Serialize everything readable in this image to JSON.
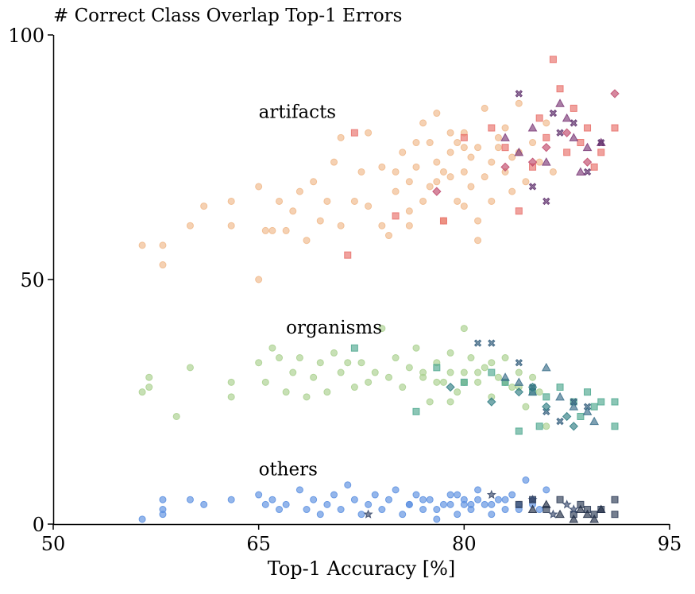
{
  "chart_data": {
    "type": "scatter",
    "title": "# Correct Class Overlap Top-1 Errors",
    "xlabel": "Top-1 Accuracy [%]",
    "ylabel": "",
    "xlim": [
      50,
      95
    ],
    "ylim": [
      0,
      100
    ],
    "x_ticks": [
      "50",
      "65",
      "80",
      "95"
    ],
    "y_ticks": [
      "0",
      "50",
      "100"
    ],
    "grid": false,
    "annotations": [
      {
        "text": "artifacts",
        "x": 65,
        "y": 83
      },
      {
        "text": "organisms",
        "x": 67,
        "y": 39
      },
      {
        "text": "others",
        "x": 65,
        "y": 10
      }
    ],
    "series": [
      {
        "group": "artifacts",
        "color": "#f0b98a",
        "marker": "circle",
        "points": [
          [
            56.5,
            57
          ],
          [
            58,
            57
          ],
          [
            58,
            53
          ],
          [
            60,
            61
          ],
          [
            61,
            65
          ],
          [
            63,
            61
          ],
          [
            63,
            66
          ],
          [
            65,
            69
          ],
          [
            65.5,
            60
          ],
          [
            65,
            50
          ],
          [
            66,
            60
          ],
          [
            66.5,
            66
          ],
          [
            67,
            60
          ],
          [
            67.5,
            64
          ],
          [
            68,
            68
          ],
          [
            68.5,
            58
          ],
          [
            69,
            70
          ],
          [
            69.5,
            62
          ],
          [
            70,
            66
          ],
          [
            70.5,
            74
          ],
          [
            71,
            61
          ],
          [
            71,
            79
          ],
          [
            72,
            66
          ],
          [
            72.5,
            72
          ],
          [
            73,
            80
          ],
          [
            73,
            65
          ],
          [
            74,
            61
          ],
          [
            74,
            73
          ],
          [
            74.5,
            59
          ],
          [
            75,
            68
          ],
          [
            75.5,
            76
          ],
          [
            76,
            61
          ],
          [
            76,
            70
          ],
          [
            76.5,
            78
          ],
          [
            77,
            66
          ],
          [
            77,
            82
          ],
          [
            77.5,
            69
          ],
          [
            78,
            74
          ],
          [
            78,
            84
          ],
          [
            78.5,
            62
          ],
          [
            79,
            71
          ],
          [
            79,
            76
          ],
          [
            79.5,
            66
          ],
          [
            80,
            80
          ],
          [
            80,
            72
          ],
          [
            80.5,
            69
          ],
          [
            81,
            77
          ],
          [
            81,
            62
          ],
          [
            81.5,
            85
          ],
          [
            82,
            74
          ],
          [
            82,
            66
          ],
          [
            82.5,
            79
          ],
          [
            83,
            72
          ],
          [
            83,
            81
          ],
          [
            83.5,
            68
          ],
          [
            84,
            76
          ],
          [
            84,
            86
          ],
          [
            84.5,
            70
          ],
          [
            85,
            78
          ],
          [
            85.5,
            74
          ],
          [
            86,
            82
          ],
          [
            86.5,
            72
          ],
          [
            76.5,
            73
          ],
          [
            77.5,
            78
          ],
          [
            78.5,
            72
          ],
          [
            79.5,
            78
          ],
          [
            80.5,
            75
          ],
          [
            81.5,
            71
          ],
          [
            82.5,
            77
          ],
          [
            83.5,
            75
          ],
          [
            80,
            77
          ],
          [
            79,
            80
          ],
          [
            78,
            70
          ],
          [
            81,
            58
          ],
          [
            76,
            64
          ],
          [
            75,
            72
          ],
          [
            80,
            65
          ]
        ]
      },
      {
        "group": "artifacts",
        "color": "#e8706a",
        "marker": "square",
        "points": [
          [
            72,
            80
          ],
          [
            71.5,
            55
          ],
          [
            75,
            63
          ],
          [
            78.5,
            62
          ],
          [
            80,
            79
          ],
          [
            82,
            81
          ],
          [
            83,
            77
          ],
          [
            84,
            64
          ],
          [
            85,
            73
          ],
          [
            85.5,
            83
          ],
          [
            86,
            79
          ],
          [
            87,
            89
          ],
          [
            87.5,
            76
          ],
          [
            88,
            85
          ],
          [
            88.5,
            78
          ],
          [
            89,
            81
          ],
          [
            89.5,
            73
          ],
          [
            90,
            76
          ],
          [
            91,
            81
          ],
          [
            86.5,
            95
          ]
        ]
      },
      {
        "group": "artifacts",
        "color": "#7c3a78",
        "marker": "triangle",
        "points": [
          [
            83,
            79
          ],
          [
            84,
            76
          ],
          [
            85,
            81
          ],
          [
            86,
            74
          ],
          [
            87,
            86
          ],
          [
            88,
            79
          ],
          [
            88.5,
            72
          ],
          [
            89,
            77
          ],
          [
            90,
            78
          ],
          [
            87.5,
            83
          ]
        ]
      },
      {
        "group": "artifacts",
        "color": "#5c2d6a",
        "marker": "cross",
        "points": [
          [
            84,
            88
          ],
          [
            85,
            69
          ],
          [
            86,
            66
          ],
          [
            87,
            80
          ],
          [
            88,
            82
          ],
          [
            89,
            72
          ],
          [
            90,
            78
          ],
          [
            86.5,
            84
          ]
        ]
      },
      {
        "group": "artifacts",
        "color": "#c0486a",
        "marker": "diamond",
        "points": [
          [
            78,
            68
          ],
          [
            83,
            73
          ],
          [
            85,
            74
          ],
          [
            86,
            77
          ],
          [
            87.5,
            80
          ],
          [
            89,
            74
          ],
          [
            91,
            88
          ]
        ]
      },
      {
        "group": "organisms",
        "color": "#a9d08e",
        "marker": "circle",
        "points": [
          [
            56.5,
            27
          ],
          [
            57,
            30
          ],
          [
            57,
            28
          ],
          [
            59,
            22
          ],
          [
            60,
            32
          ],
          [
            63,
            26
          ],
          [
            63,
            29
          ],
          [
            65,
            33
          ],
          [
            65.5,
            29
          ],
          [
            66,
            36
          ],
          [
            66.5,
            34
          ],
          [
            67,
            27
          ],
          [
            67.5,
            31
          ],
          [
            68,
            34
          ],
          [
            68.5,
            26
          ],
          [
            69,
            30
          ],
          [
            69.5,
            33
          ],
          [
            70,
            27
          ],
          [
            70.5,
            35
          ],
          [
            71,
            31
          ],
          [
            71.5,
            33
          ],
          [
            72,
            28
          ],
          [
            72.5,
            33
          ],
          [
            73,
            29
          ],
          [
            73.5,
            31
          ],
          [
            74,
            40
          ],
          [
            74.5,
            30
          ],
          [
            75,
            34
          ],
          [
            75.5,
            28
          ],
          [
            76,
            32
          ],
          [
            76.5,
            36
          ],
          [
            77,
            30
          ],
          [
            77.5,
            25
          ],
          [
            78,
            33
          ],
          [
            78.5,
            29
          ],
          [
            79,
            35
          ],
          [
            79.5,
            27
          ],
          [
            80,
            31
          ],
          [
            80,
            40
          ],
          [
            80.5,
            34
          ],
          [
            81,
            29
          ],
          [
            81.5,
            32
          ],
          [
            82,
            26
          ],
          [
            82.5,
            30
          ],
          [
            83,
            34
          ],
          [
            83.5,
            28
          ],
          [
            84,
            31
          ],
          [
            84.5,
            24
          ],
          [
            85,
            30
          ],
          [
            85.5,
            27
          ],
          [
            86,
            20
          ],
          [
            77,
            31
          ],
          [
            78,
            29
          ],
          [
            79,
            31
          ],
          [
            80,
            29
          ],
          [
            81,
            31
          ],
          [
            82,
            33
          ],
          [
            83,
            29
          ],
          [
            84,
            28
          ],
          [
            79,
            25
          ]
        ]
      },
      {
        "group": "organisms",
        "color": "#4fa88f",
        "marker": "square",
        "points": [
          [
            72,
            36
          ],
          [
            78,
            32
          ],
          [
            80,
            29
          ],
          [
            82,
            31
          ],
          [
            83,
            29
          ],
          [
            85,
            27
          ],
          [
            86,
            26
          ],
          [
            87,
            28
          ],
          [
            88,
            25
          ],
          [
            88.5,
            22
          ],
          [
            89,
            27
          ],
          [
            89.5,
            24
          ],
          [
            90,
            25
          ],
          [
            91,
            25
          ],
          [
            91,
            20
          ],
          [
            85.5,
            20
          ],
          [
            84,
            19
          ],
          [
            76.5,
            23
          ]
        ]
      },
      {
        "group": "organisms",
        "color": "#2f5a7a",
        "marker": "cross",
        "points": [
          [
            81,
            37
          ],
          [
            82,
            37
          ],
          [
            84,
            33
          ],
          [
            85,
            28
          ],
          [
            86,
            23
          ],
          [
            87,
            21
          ],
          [
            88,
            25
          ],
          [
            89,
            24
          ]
        ]
      },
      {
        "group": "organisms",
        "color": "#3a6f8a",
        "marker": "triangle",
        "points": [
          [
            83,
            30
          ],
          [
            84,
            29
          ],
          [
            85,
            27
          ],
          [
            86,
            32
          ],
          [
            87,
            26
          ],
          [
            88,
            24
          ],
          [
            89,
            23
          ],
          [
            89.5,
            21
          ]
        ]
      },
      {
        "group": "organisms",
        "color": "#2e7d83",
        "marker": "diamond",
        "points": [
          [
            79,
            28
          ],
          [
            82,
            25
          ],
          [
            84,
            27
          ],
          [
            85,
            28
          ],
          [
            86,
            24
          ],
          [
            87.5,
            22
          ],
          [
            88,
            20
          ]
        ]
      },
      {
        "group": "others",
        "color": "#5b8fe0",
        "marker": "circle",
        "points": [
          [
            56.5,
            1
          ],
          [
            58,
            5
          ],
          [
            58,
            3
          ],
          [
            58,
            2
          ],
          [
            60,
            5
          ],
          [
            61,
            4
          ],
          [
            63,
            5
          ],
          [
            65,
            6
          ],
          [
            65.5,
            4
          ],
          [
            66,
            5
          ],
          [
            66.5,
            3
          ],
          [
            67,
            4
          ],
          [
            68,
            7
          ],
          [
            68.5,
            3
          ],
          [
            69,
            5
          ],
          [
            69.5,
            2
          ],
          [
            70,
            4
          ],
          [
            70.5,
            6
          ],
          [
            71,
            3
          ],
          [
            71.5,
            8
          ],
          [
            72,
            5
          ],
          [
            72.5,
            2
          ],
          [
            73,
            4
          ],
          [
            73.5,
            6
          ],
          [
            74,
            3
          ],
          [
            74.5,
            5
          ],
          [
            75,
            7
          ],
          [
            75.5,
            2
          ],
          [
            76,
            4
          ],
          [
            76.5,
            6
          ],
          [
            77,
            3
          ],
          [
            77.5,
            5
          ],
          [
            78,
            1
          ],
          [
            78.5,
            4
          ],
          [
            79,
            6
          ],
          [
            79.5,
            2
          ],
          [
            80,
            5
          ],
          [
            80.5,
            3
          ],
          [
            81,
            7
          ],
          [
            81.5,
            4
          ],
          [
            82,
            2
          ],
          [
            82.5,
            5
          ],
          [
            83,
            3
          ],
          [
            83.5,
            6
          ],
          [
            84,
            4
          ],
          [
            84.5,
            9
          ],
          [
            85,
            5
          ],
          [
            85.5,
            3
          ],
          [
            86,
            7
          ],
          [
            76,
            4
          ],
          [
            77,
            5
          ],
          [
            78,
            3
          ],
          [
            79,
            4
          ],
          [
            80,
            4
          ],
          [
            81,
            5
          ],
          [
            82,
            4
          ],
          [
            83,
            5
          ],
          [
            84,
            3
          ],
          [
            85,
            4
          ],
          [
            79.5,
            6
          ],
          [
            80.5,
            4
          ]
        ]
      },
      {
        "group": "others",
        "color": "#2b3a55",
        "marker": "square",
        "points": [
          [
            84,
            4
          ],
          [
            85,
            5
          ],
          [
            86,
            3
          ],
          [
            87,
            5
          ],
          [
            88,
            2
          ],
          [
            88.5,
            4
          ],
          [
            89,
            3
          ],
          [
            89.5,
            2
          ],
          [
            90,
            3
          ],
          [
            91,
            5
          ],
          [
            91,
            2
          ]
        ]
      },
      {
        "group": "others",
        "color": "#1f2b44",
        "marker": "triangle",
        "points": [
          [
            85,
            3
          ],
          [
            86,
            4
          ],
          [
            87,
            2
          ],
          [
            88,
            1
          ],
          [
            88.5,
            3
          ],
          [
            89,
            2
          ],
          [
            89.5,
            1
          ],
          [
            90,
            3
          ]
        ]
      },
      {
        "group": "others",
        "color": "#35466a",
        "marker": "star",
        "points": [
          [
            73,
            2
          ],
          [
            82,
            6
          ],
          [
            85,
            5
          ],
          [
            86.5,
            2
          ],
          [
            87.5,
            4
          ],
          [
            88,
            3
          ]
        ]
      }
    ]
  }
}
